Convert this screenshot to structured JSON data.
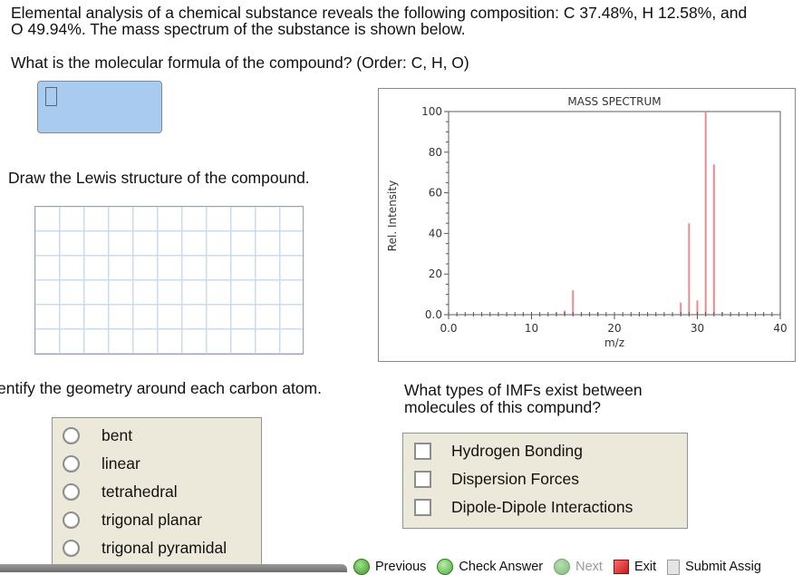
{
  "question": {
    "intro_line1": "Elemental analysis of a chemical substance reveals the following composition: C 37.48%, H 12.58%, and",
    "intro_line2": "O 49.94%. The mass spectrum of the substance is shown below.",
    "formula_prompt": "What is the molecular formula of the compound? (Order: C, H, O)",
    "formula_answer_value": "",
    "lewis_prompt": "Draw the Lewis structure of the compound.",
    "lewis_grid": {
      "columns": 11,
      "rows": 6
    },
    "geometry_prompt": "entify the geometry around each carbon atom.",
    "geometry_options": [
      {
        "label": "bent",
        "selected": false
      },
      {
        "label": "linear",
        "selected": false
      },
      {
        "label": "tetrahedral",
        "selected": false
      },
      {
        "label": "trigonal planar",
        "selected": false
      },
      {
        "label": "trigonal pyramidal",
        "selected": false
      }
    ],
    "imf_prompt": "What types of IMFs exist between molecules of this compund?",
    "imf_options": [
      {
        "label": "Hydrogen Bonding",
        "checked": false
      },
      {
        "label": "Dispersion Forces",
        "checked": false
      },
      {
        "label": "Dipole-Dipole Interactions",
        "checked": false
      }
    ]
  },
  "toolbar": {
    "previous": "Previous",
    "check_answer": "Check Answer",
    "next": "Next",
    "exit": "Exit",
    "submit": "Submit Assig"
  },
  "chart_data": {
    "type": "bar",
    "title": "MASS SPECTRUM",
    "xlabel": "m/z",
    "ylabel": "Rel. Intensity",
    "xlim": [
      0,
      40
    ],
    "ylim": [
      0,
      100
    ],
    "x_ticks": [
      "0.0",
      "10",
      "20",
      "30",
      "40"
    ],
    "y_ticks": [
      "0.0",
      "20",
      "40",
      "60",
      "80",
      "100"
    ],
    "grid": false,
    "bar_color": "#f08a8a",
    "x": [
      2,
      13,
      14,
      15,
      17,
      18,
      28,
      29,
      30,
      31,
      32,
      33
    ],
    "values": [
      0.5,
      1,
      2,
      12,
      0.5,
      1,
      6,
      45,
      7,
      100,
      74,
      1
    ]
  }
}
